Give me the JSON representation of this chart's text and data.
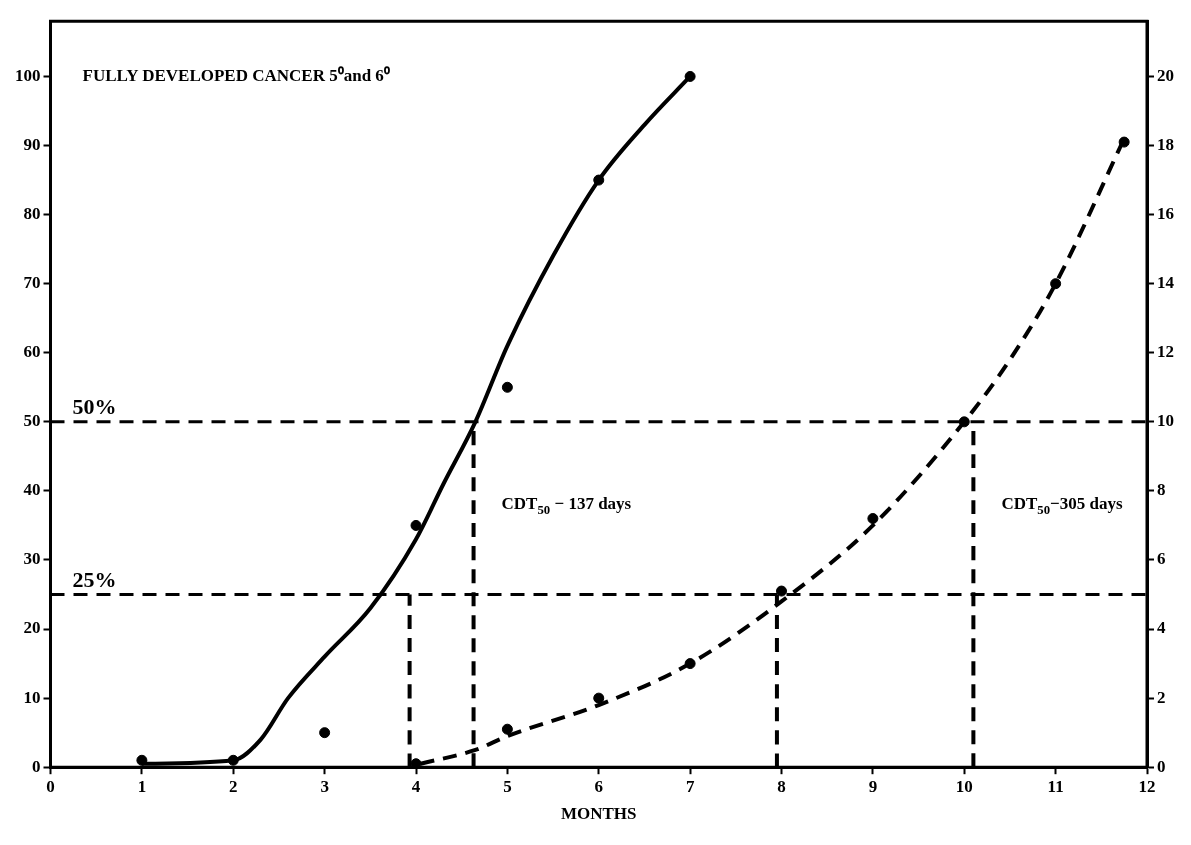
{
  "chart_data": {
    "type": "line",
    "title": "FULLY DEVELOPED CANCER 5⁰and 6⁰",
    "xlabel": "MONTHS",
    "xlim": [
      0,
      12
    ],
    "xticks": [
      0,
      1,
      2,
      3,
      4,
      5,
      6,
      7,
      8,
      9,
      10,
      11,
      12
    ],
    "ylim": [
      0,
      108
    ],
    "yticks": [
      0,
      10,
      20,
      30,
      40,
      50,
      60,
      70,
      80,
      90,
      100
    ],
    "y2lim": [
      0,
      21.6
    ],
    "y2ticks": [
      0,
      2,
      4,
      6,
      8,
      10,
      12,
      14,
      16,
      18,
      20
    ],
    "grid": false,
    "legend": false,
    "series": [
      {
        "type": "line",
        "x": [
          1,
          2,
          2.3,
          2.6,
          3,
          3.5,
          4,
          4.3,
          4.65,
          5,
          5.5,
          6,
          6.5,
          7
        ],
        "values": [
          0.5,
          1,
          4,
          10,
          16,
          23,
          33,
          41,
          50,
          61,
          74,
          85,
          93,
          100
        ],
        "color": "#000000",
        "line_style": "solid",
        "marker": "none"
      },
      {
        "type": "scatter",
        "x": [
          1,
          2,
          3,
          4,
          5,
          6,
          7
        ],
        "values": [
          1,
          1,
          5,
          35,
          55,
          85,
          100
        ],
        "color": "#000000",
        "marker": "circle"
      },
      {
        "type": "line",
        "axis": "y2",
        "x": [
          4.05,
          4.65,
          5,
          6,
          7,
          8,
          9,
          10,
          10.5,
          11,
          11.75
        ],
        "values": [
          0.1,
          0.5,
          0.9,
          1.8,
          3,
          4.8,
          7,
          10,
          11.8,
          14,
          18.2
        ],
        "color": "#000000",
        "line_style": "dashed",
        "marker": "none"
      },
      {
        "type": "scatter",
        "axis": "y2",
        "x": [
          4,
          5,
          6,
          7,
          8,
          9,
          10,
          11,
          11.75
        ],
        "values": [
          0.1,
          1.1,
          2,
          3,
          5.1,
          7.2,
          10,
          14,
          18.1
        ],
        "color": "#000000",
        "marker": "circle"
      },
      {
        "type": "line",
        "x": [
          3.93,
          3.93
        ],
        "values": [
          0,
          25
        ],
        "color": "#000000",
        "line_style": "dashed",
        "marker": "none"
      },
      {
        "type": "line",
        "x": [
          4.63,
          4.63
        ],
        "values": [
          0,
          50
        ],
        "color": "#000000",
        "line_style": "dashed",
        "marker": "none"
      },
      {
        "type": "line",
        "x": [
          7.95,
          7.95
        ],
        "values": [
          0,
          25
        ],
        "color": "#000000",
        "line_style": "dashed",
        "marker": "none"
      },
      {
        "type": "line",
        "x": [
          10.1,
          10.1
        ],
        "values": [
          0,
          50
        ],
        "color": "#000000",
        "line_style": "dashed",
        "marker": "none"
      }
    ],
    "ref_lines": [
      {
        "axis": "y",
        "value": 50,
        "label": "50%",
        "line_style": "dashed"
      },
      {
        "axis": "y",
        "value": 25,
        "label": "25%",
        "line_style": "dashed"
      }
    ],
    "annotations": [
      {
        "text": "CDT$_{50}$ − 137 days",
        "x": 4.63,
        "y": 38
      },
      {
        "text": "CDT$_{50}$−305 days",
        "x": 10.1,
        "y": 38
      }
    ]
  }
}
